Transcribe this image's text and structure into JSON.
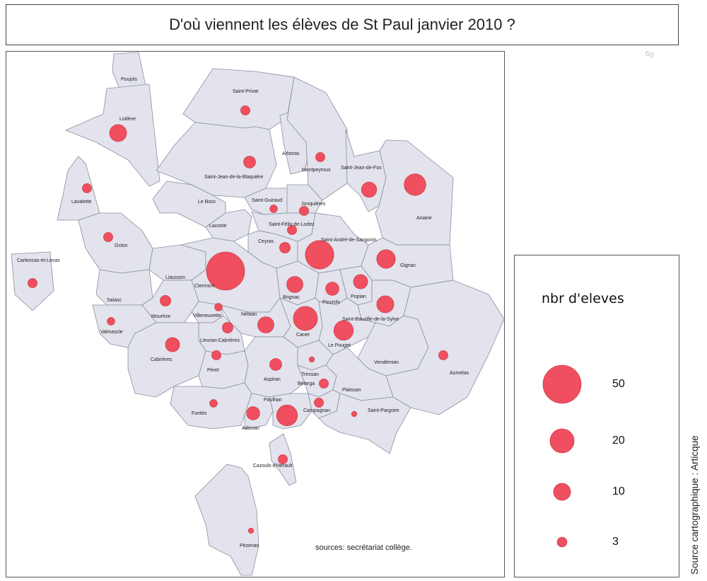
{
  "title": "D'où viennent  les  élèves de St Paul  janvier 2010 ?",
  "sources": "sources: secrétariat collège.",
  "side_credit": "Source cartographique : Articque",
  "pencil_note": "60",
  "legend": {
    "title": "nbr d'eleves",
    "items": [
      {
        "value": "50"
      },
      {
        "value": "20"
      },
      {
        "value": "10"
      },
      {
        "value": "3"
      }
    ]
  },
  "colors": {
    "commune_fill": "#e2e3ec",
    "commune_border": "#8a8ea0",
    "bubble": "#ef4f5f",
    "bubble_stroke": "#c8303f"
  },
  "communes": [
    {
      "name": "Poujols",
      "students": 0
    },
    {
      "name": "Lodève",
      "students": 10
    },
    {
      "name": "Saint-Privat",
      "students": 3
    },
    {
      "name": "Arboras",
      "students": 0
    },
    {
      "name": "Montpeyroux",
      "students": 3
    },
    {
      "name": "Saint-Jean-de-Fos",
      "students": 8
    },
    {
      "name": "Saint-Jean-de-la-Blaquière",
      "students": 5
    },
    {
      "name": "Le Bosc",
      "students": 0
    },
    {
      "name": "Lavalette",
      "students": 3
    },
    {
      "name": "Aniane",
      "students": 16
    },
    {
      "name": "Saint-Guiraud",
      "students": 2
    },
    {
      "name": "Jonquières",
      "students": 3
    },
    {
      "name": "Lacoste",
      "students": 0
    },
    {
      "name": "Saint-Félix-de-Lodez",
      "students": 3
    },
    {
      "name": "Octon",
      "students": 3
    },
    {
      "name": "Ceyras",
      "students": 4
    },
    {
      "name": "Saint-André-de-Sangonis",
      "students": 28
    },
    {
      "name": "Carlencas-et-Levas",
      "students": 3
    },
    {
      "name": "Liausson",
      "students": 0
    },
    {
      "name": "Clermont",
      "students": 50
    },
    {
      "name": "Gignac",
      "students": 12
    },
    {
      "name": "Salasc",
      "students": 0
    },
    {
      "name": "Brignac",
      "students": 9
    },
    {
      "name": "Pouzols",
      "students": 6
    },
    {
      "name": "Popian",
      "students": 7
    },
    {
      "name": "Mourèze",
      "students": 4
    },
    {
      "name": "Villeneuvette",
      "students": 2
    },
    {
      "name": "Nébian",
      "students": 9
    },
    {
      "name": "Canet",
      "students": 20
    },
    {
      "name": "Saint-Bauzille-de-la-Sylve",
      "students": 10
    },
    {
      "name": "Valmascle",
      "students": 2
    },
    {
      "name": "Lieuran-Cabrières",
      "students": 4
    },
    {
      "name": "Le Pouget",
      "students": 13
    },
    {
      "name": "Cabrières",
      "students": 7
    },
    {
      "name": "Péret",
      "students": 3
    },
    {
      "name": "Vendémian",
      "students": 0
    },
    {
      "name": "Aumelas",
      "students": 3
    },
    {
      "name": "Aspiran",
      "students": 5
    },
    {
      "name": "Tressan",
      "students": 1
    },
    {
      "name": "Bélarga",
      "students": 3
    },
    {
      "name": "Plaissan",
      "students": 0
    },
    {
      "name": "Fontès",
      "students": 2
    },
    {
      "name": "Adissan",
      "students": 6
    },
    {
      "name": "Paulhan",
      "students": 15
    },
    {
      "name": "Campagnan",
      "students": 3
    },
    {
      "name": "Saint-Pargoire",
      "students": 1
    },
    {
      "name": "Cazouls-d'Hérault",
      "students": 3
    },
    {
      "name": "Pézenas",
      "students": 1
    }
  ]
}
